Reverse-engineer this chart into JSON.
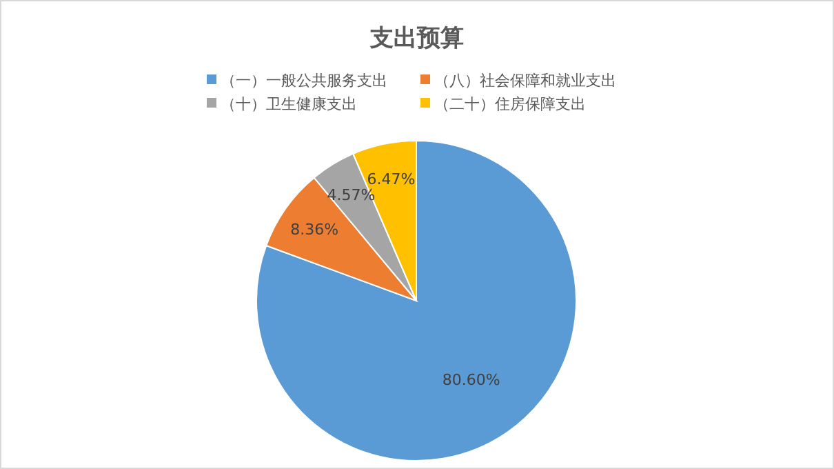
{
  "chart_data": {
    "type": "pie",
    "title": "支出预算",
    "categories": [
      "（一）一般公共服务支出",
      "（八）社会保障和就业支出",
      "（十）卫生健康支出",
      "（二十）住房保障支出"
    ],
    "values": [
      80.6,
      8.36,
      4.57,
      6.47
    ],
    "colors": [
      "#5b9bd5",
      "#ed7d31",
      "#a5a5a5",
      "#ffc000"
    ],
    "value_labels": [
      "80.60%",
      "8.36%",
      "4.57%",
      "6.47%"
    ],
    "legend": "top"
  }
}
